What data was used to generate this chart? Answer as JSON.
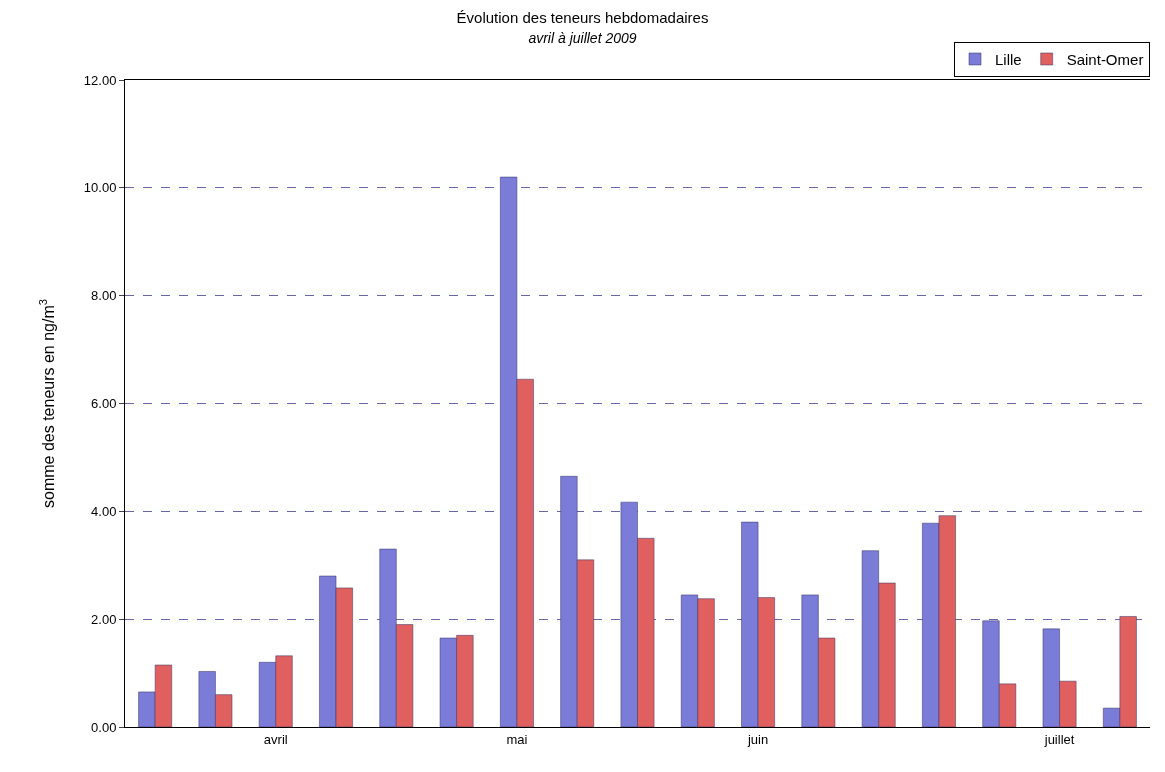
{
  "chart_data": {
    "type": "bar",
    "title": "Évolution des teneurs hebdomadaires",
    "subtitle": "avril à juillet 2009",
    "ylabel": "somme des teneurs en ng/m$^{3}$",
    "categories": [
      null,
      null,
      "avril",
      null,
      null,
      null,
      "mai",
      null,
      null,
      null,
      "juin",
      null,
      null,
      null,
      null,
      "juillet",
      null
    ],
    "series": [
      {
        "name": "Lille",
        "color": "#7b7bd8",
        "values": [
          0.65,
          1.03,
          1.2,
          2.8,
          3.3,
          1.65,
          10.2,
          4.65,
          4.17,
          2.45,
          3.8,
          2.45,
          3.27,
          3.78,
          1.97,
          1.82,
          0.35
        ]
      },
      {
        "name": "Saint-Omer",
        "color": "#e06060",
        "values": [
          1.15,
          0.6,
          1.32,
          2.58,
          1.9,
          1.7,
          6.45,
          3.1,
          3.5,
          2.38,
          2.4,
          1.65,
          2.67,
          3.92,
          0.8,
          0.85,
          2.05
        ]
      }
    ],
    "ylim": [
      0,
      12
    ],
    "yticks": [
      {
        "value": 0,
        "label": "0.00"
      },
      {
        "value": 2,
        "label": "2.00"
      },
      {
        "value": 4,
        "label": "4.00"
      },
      {
        "value": 6,
        "label": "6.00"
      },
      {
        "value": 8,
        "label": "8.00"
      },
      {
        "value": 10,
        "label": "10.00"
      },
      {
        "value": 12,
        "label": "12.00"
      }
    ],
    "grid": "y",
    "legend": "top right"
  }
}
